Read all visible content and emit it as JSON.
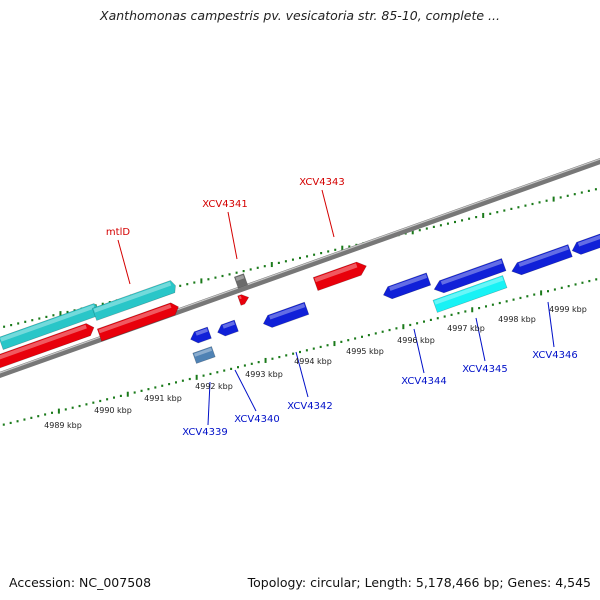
{
  "title": "Xanthomonas campestris pv. vesicatoria str. 85-10, complete ...",
  "footer": {
    "accession": "Accession: NC_007508",
    "stats": "Topology: circular; Length: 5,178,466 bp; Genes: 4,545"
  },
  "colors": {
    "forward_gene": "#e8000b",
    "reverse_gene": "#1020d8",
    "forward_rna": "#29c6c8",
    "reverse_rna": "#18f2f5",
    "pseudo_forward": "#6b6b6b",
    "pseudo_reverse": "#4f82b4",
    "backbone": "#777777",
    "tick": "#1a7a1a",
    "forward_label": "#d40000",
    "reverse_label": "#0010c8"
  },
  "scale_labels": [
    "4989 kbp",
    "4990 kbp",
    "4991 kbp",
    "4992 kbp",
    "4993 kbp",
    "4994 kbp",
    "4995 kbp",
    "4996 kbp",
    "4997 kbp",
    "4998 kbp",
    "4999 kbp"
  ],
  "forward_labels": [
    {
      "text": "mtlD",
      "color": "forward_label"
    },
    {
      "text": "XCV4341",
      "color": "forward_label"
    },
    {
      "text": "XCV4343",
      "color": "forward_label"
    }
  ],
  "reverse_labels": [
    {
      "text": "XCV4339",
      "color": "reverse_label"
    },
    {
      "text": "XCV4340",
      "color": "reverse_label"
    },
    {
      "text": "XCV4342",
      "color": "reverse_label"
    },
    {
      "text": "XCV4344",
      "color": "reverse_label"
    },
    {
      "text": "XCV4345",
      "color": "reverse_label"
    },
    {
      "text": "XCV4346",
      "color": "reverse_label"
    }
  ]
}
